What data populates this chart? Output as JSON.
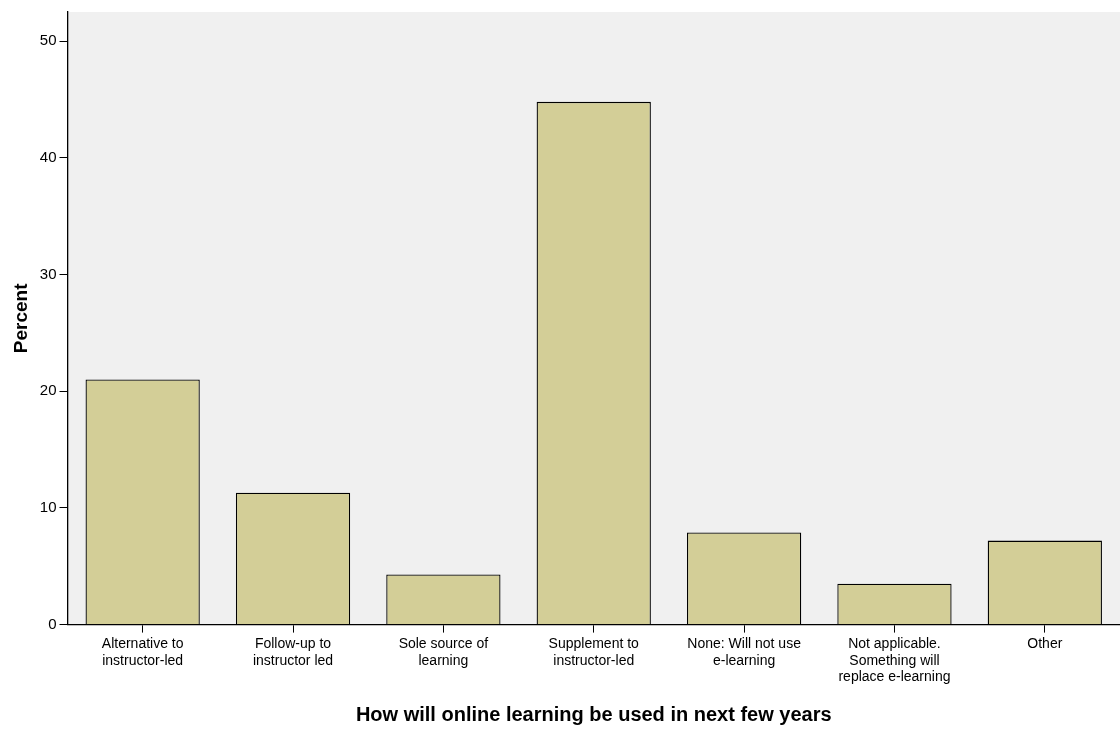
{
  "chart_data": {
    "type": "bar",
    "xlabel": "How will online learning be used in next few years",
    "ylabel": "Percent",
    "categories": [
      "Alternative to instructor-led",
      "Follow-up to instructor led",
      "Sole source of learning",
      "Supplement to instructor-led",
      "None: Will not use e-learning",
      "Not applicable. Something will replace e-learning",
      "Other"
    ],
    "values": [
      21.0,
      11.3,
      4.3,
      44.8,
      7.9,
      3.5,
      7.2
    ],
    "color": "#d3ce97",
    "ylim": [
      0,
      52.5
    ],
    "yticks": [
      0,
      10,
      20,
      30,
      40,
      50
    ],
    "grid": false,
    "legend": false
  }
}
